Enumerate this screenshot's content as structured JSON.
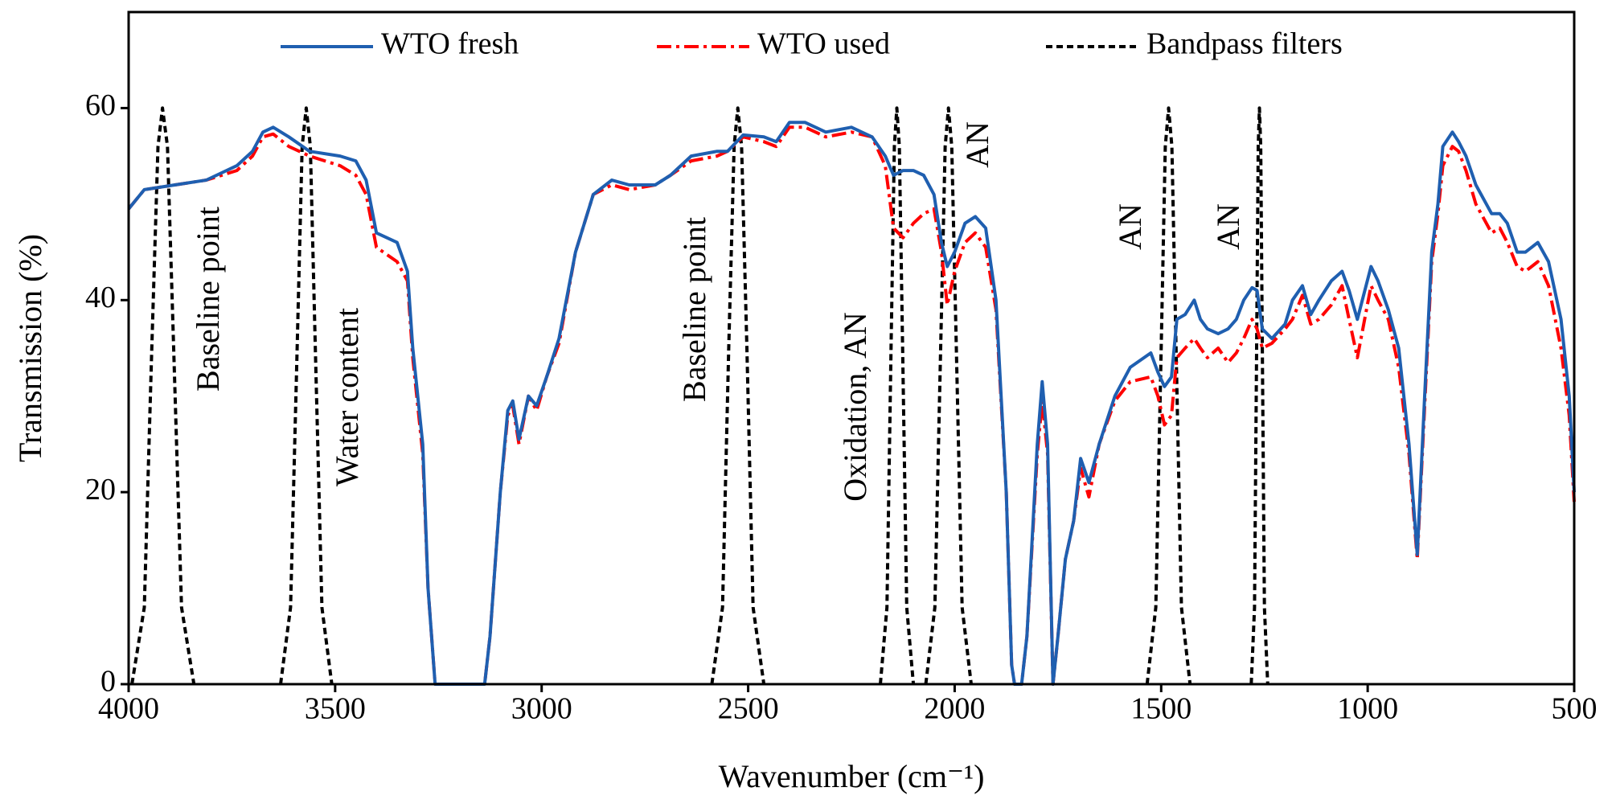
{
  "chart_data": {
    "type": "line",
    "xlabel": "Wavenumber (cm⁻¹)",
    "ylabel": "Transmission (%)",
    "xlim": [
      4000,
      500
    ],
    "xticks": [
      4000,
      3500,
      3000,
      2500,
      2000,
      1500,
      1000,
      500
    ],
    "ylim": [
      0,
      70
    ],
    "yticks": [
      0,
      20,
      40,
      60
    ],
    "legend": "top",
    "grid": false,
    "x": [
      4000,
      3962,
      3888,
      3812,
      3738,
      3700,
      3675,
      3650,
      3612,
      3562,
      3488,
      3450,
      3425,
      3400,
      3350,
      3325,
      3312,
      3288,
      3275,
      3258,
      3138,
      3125,
      3100,
      3082,
      3070,
      3055,
      3032,
      3012,
      2988,
      2958,
      2918,
      2875,
      2830,
      2788,
      2725,
      2688,
      2638,
      2575,
      2550,
      2512,
      2462,
      2432,
      2400,
      2362,
      2312,
      2250,
      2200,
      2168,
      2148,
      2125,
      2100,
      2075,
      2050,
      2032,
      2018,
      2000,
      1975,
      1950,
      1925,
      1900,
      1875,
      1862,
      1855,
      1838,
      1825,
      1800,
      1788,
      1775,
      1762,
      1750,
      1732,
      1712,
      1695,
      1675,
      1650,
      1612,
      1575,
      1525,
      1508,
      1492,
      1475,
      1462,
      1442,
      1420,
      1405,
      1388,
      1362,
      1338,
      1318,
      1300,
      1280,
      1268,
      1255,
      1232,
      1200,
      1182,
      1158,
      1138,
      1118,
      1088,
      1062,
      1045,
      1025,
      992,
      975,
      950,
      925,
      900,
      880,
      862,
      845,
      830,
      818,
      795,
      780,
      762,
      738,
      700,
      680,
      662,
      638,
      618,
      588,
      562,
      532,
      512,
      500
    ],
    "series": [
      {
        "name": "WTO fresh",
        "color": "#1f5fb0",
        "style": "solid",
        "values": [
          49.5,
          51.5,
          52,
          52.5,
          54,
          55.5,
          57.5,
          58,
          57,
          55.5,
          55,
          54.5,
          52.5,
          47,
          46,
          43,
          35,
          25,
          10,
          0,
          0,
          5,
          20,
          28.5,
          29.5,
          25.5,
          30,
          29,
          32,
          36,
          45,
          51,
          52.5,
          52,
          52,
          53,
          55,
          55.5,
          55.5,
          57.2,
          57,
          56.5,
          58.5,
          58.5,
          57.5,
          58,
          57,
          55,
          53,
          53.5,
          53.5,
          53,
          51,
          46,
          43.5,
          45,
          48,
          48.7,
          47.5,
          40,
          20,
          2,
          0,
          0,
          5,
          25,
          31.5,
          25,
          0,
          5,
          13,
          17,
          23.5,
          21,
          25,
          30,
          33,
          34.5,
          32.5,
          31,
          32,
          38,
          38.5,
          40,
          38,
          37,
          36.5,
          37,
          38,
          40,
          41.3,
          41,
          37,
          36,
          37.5,
          40,
          41.5,
          38.5,
          40,
          42,
          43,
          41,
          38,
          43.5,
          42,
          39,
          35,
          25,
          13.5,
          30,
          45,
          50,
          56,
          57.5,
          56.5,
          55,
          52,
          49,
          49,
          48,
          45,
          45,
          46,
          44,
          38,
          30,
          20
        ]
      },
      {
        "name": "WTO used",
        "color": "#ff0000",
        "style": "dashdot",
        "values": [
          49.5,
          51.5,
          52,
          52.5,
          53.5,
          55,
          57,
          57.3,
          56,
          55,
          54,
          53,
          51,
          45.5,
          44,
          42,
          34,
          24,
          10,
          0,
          0,
          5,
          20,
          28,
          29,
          25,
          30,
          28.5,
          32,
          35.5,
          45,
          51,
          52,
          51.5,
          52,
          53,
          54.5,
          55,
          55.5,
          57,
          56.5,
          56,
          58,
          58,
          57,
          57.5,
          57,
          54,
          47.5,
          46.5,
          48,
          49,
          49.5,
          45,
          39.5,
          43,
          46,
          47,
          45.5,
          39,
          20,
          2,
          0,
          0,
          5,
          24,
          29.5,
          24,
          0,
          5,
          13,
          17,
          22.5,
          19.5,
          25,
          29.5,
          31.5,
          32,
          30,
          27,
          28,
          34,
          35,
          36,
          35,
          34,
          35,
          33.5,
          34.5,
          36,
          38,
          37,
          35,
          35.5,
          37,
          38,
          40.5,
          37.5,
          38,
          39.5,
          41.5,
          38,
          34,
          41.5,
          40,
          38,
          33,
          24,
          13,
          29,
          44,
          49,
          54,
          56,
          55.5,
          53.5,
          50,
          47,
          47.5,
          46,
          43.5,
          43,
          44,
          41.5,
          35,
          28,
          19
        ]
      },
      {
        "name": "Bandpass filters",
        "color": "#000000",
        "style": "dashed",
        "x": [
          3992,
          3962,
          3944,
          3929,
          3918,
          3906,
          3891,
          3872,
          3842,
          3700,
          3632,
          3608,
          3592,
          3580,
          3570,
          3560,
          3548,
          3532,
          3508,
          2550,
          2588,
          2562,
          2547,
          2534,
          2525,
          2516,
          2503,
          2488,
          2462,
          2170,
          2180,
          2164,
          2154,
          2146,
          2140,
          2134,
          2126,
          2116,
          2100,
          2085,
          2070,
          2048,
          2034,
          2023,
          2015,
          2007,
          1996,
          1982,
          1960,
          1700,
          1534,
          1513,
          1500,
          1490,
          1482,
          1474,
          1464,
          1451,
          1430,
          1350,
          1282,
          1274,
          1269,
          1265,
          1262,
          1259,
          1255,
          1250,
          1242
        ],
        "values": [
          0,
          8,
          35,
          56,
          60,
          56,
          35,
          8,
          0,
          null,
          0,
          8,
          35,
          56,
          60,
          56,
          35,
          8,
          0,
          null,
          0,
          8,
          35,
          56,
          60,
          56,
          35,
          8,
          0,
          null,
          0,
          8,
          35,
          56,
          60,
          56,
          35,
          8,
          0,
          null,
          0,
          8,
          35,
          56,
          60,
          56,
          35,
          8,
          0,
          null,
          0,
          8,
          35,
          56,
          60,
          56,
          35,
          8,
          0,
          null,
          0,
          8,
          35,
          56,
          60,
          56,
          35,
          8,
          0
        ]
      }
    ],
    "annotations": [
      "Baseline point",
      "Water content",
      "Baseline point",
      "Oxidation, AN",
      "AN",
      "AN",
      "AN"
    ]
  }
}
